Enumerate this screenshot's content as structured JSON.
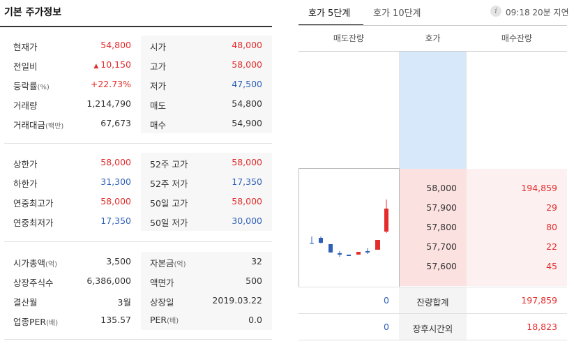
{
  "basic": {
    "title": "기본 주가정보",
    "group1": {
      "left": [
        {
          "label": "현재가",
          "value": "54,800",
          "color": "red"
        },
        {
          "label": "전일비",
          "value": "10,150",
          "color": "red",
          "arrow": "▲"
        },
        {
          "label": "등락률",
          "unit": "(%)",
          "value": "+22.73%",
          "color": "red"
        },
        {
          "label": "거래량",
          "value": "1,214,790",
          "color": "dark"
        },
        {
          "label": "거래대금",
          "unit": "(백만)",
          "value": "67,673",
          "color": "dark"
        }
      ],
      "right": [
        {
          "label": "시가",
          "value": "48,000",
          "color": "red"
        },
        {
          "label": "고가",
          "value": "58,000",
          "color": "red"
        },
        {
          "label": "저가",
          "value": "47,500",
          "color": "blue"
        },
        {
          "label": "매도",
          "value": "54,800",
          "color": "dark"
        },
        {
          "label": "매수",
          "value": "54,900",
          "color": "dark"
        }
      ]
    },
    "group2": {
      "left": [
        {
          "label": "상한가",
          "value": "58,000",
          "color": "red"
        },
        {
          "label": "하한가",
          "value": "31,300",
          "color": "blue"
        },
        {
          "label": "연중최고가",
          "value": "58,000",
          "color": "red"
        },
        {
          "label": "연중최저가",
          "value": "17,350",
          "color": "blue"
        }
      ],
      "right": [
        {
          "label": "52주 고가",
          "value": "58,000",
          "color": "red"
        },
        {
          "label": "52주 저가",
          "value": "17,350",
          "color": "blue"
        },
        {
          "label": "50일 고가",
          "value": "58,000",
          "color": "red"
        },
        {
          "label": "50일 저가",
          "value": "30,000",
          "color": "blue"
        }
      ]
    },
    "group3": {
      "left": [
        {
          "label": "시가총액",
          "unit": "(억)",
          "value": "3,500",
          "color": "dark"
        },
        {
          "label": "상장주식수",
          "value": "6,386,000",
          "color": "dark"
        },
        {
          "label": "결산월",
          "value": "3월",
          "color": "dark"
        },
        {
          "label": "업종PER",
          "unit": "(배)",
          "value": "135.57",
          "color": "dark"
        }
      ],
      "right": [
        {
          "label": "자본금",
          "unit": "(억)",
          "value": "32",
          "color": "dark"
        },
        {
          "label": "액면가",
          "value": "500",
          "color": "dark"
        },
        {
          "label": "상장일",
          "value": "2019.03.22",
          "color": "dark"
        },
        {
          "label": "PER",
          "unit": "(배)",
          "value": "0.0",
          "color": "dark"
        }
      ]
    }
  },
  "orderbook": {
    "tabs": [
      "호가 5단계",
      "호가 10단계"
    ],
    "info_icon": "info-icon",
    "delay_text": "09:18 20분 지연",
    "headers": [
      "매도잔량",
      "호가",
      "매수잔량"
    ],
    "bids": [
      {
        "price": "58,000",
        "qty": "194,859"
      },
      {
        "price": "57,900",
        "qty": "29"
      },
      {
        "price": "57,800",
        "qty": "80"
      },
      {
        "price": "57,700",
        "qty": "22"
      },
      {
        "price": "57,600",
        "qty": "45"
      }
    ],
    "summary": [
      {
        "ask": "0",
        "label": "잔량합계",
        "bid": "197,859"
      },
      {
        "ask": "0",
        "label": "장후시간외",
        "bid": "18,823"
      }
    ],
    "colors": {
      "up": "#e32c2c",
      "down": "#2f5fb8",
      "ask_bg": "#d8e8fb",
      "bid_bg": "#fce1e1"
    }
  }
}
